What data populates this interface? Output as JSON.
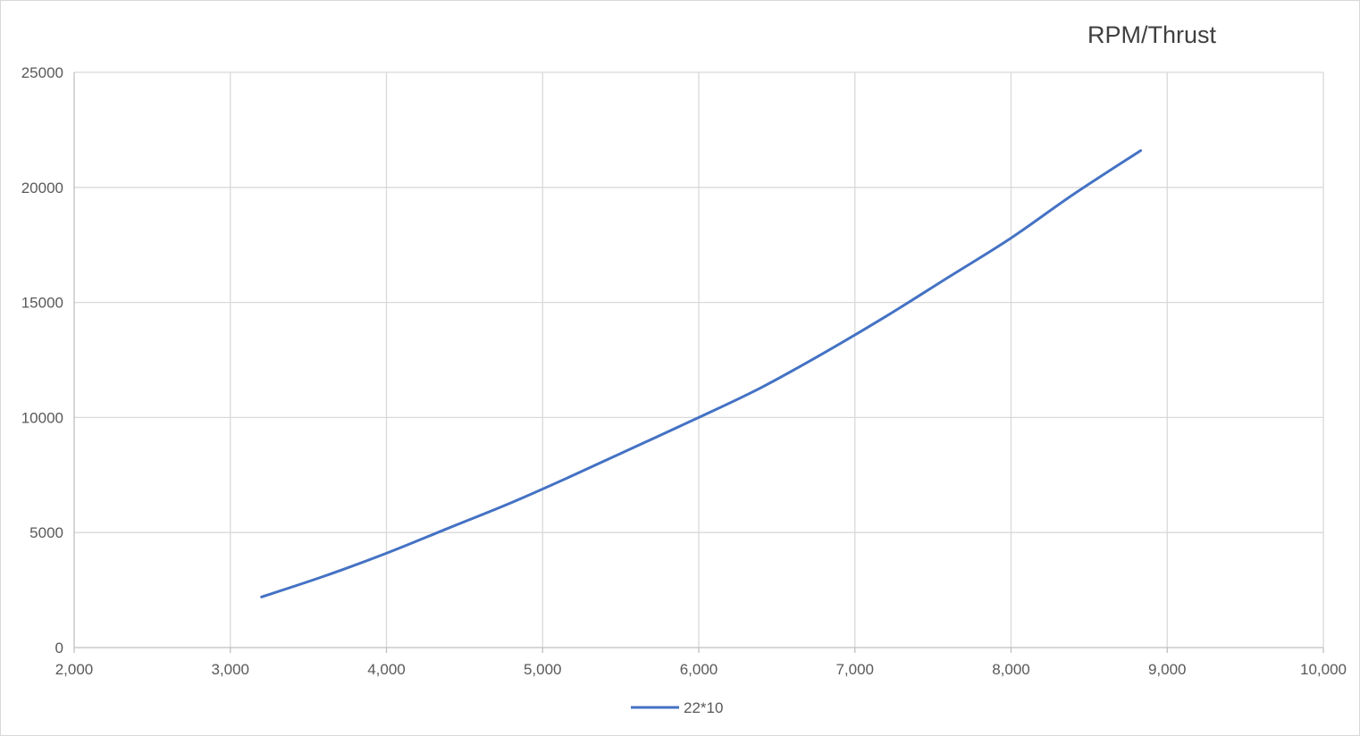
{
  "chart_data": {
    "type": "scatter",
    "title": "RPM/Thrust",
    "xlabel": "",
    "ylabel": "",
    "xlim": [
      2000,
      10000
    ],
    "ylim": [
      0,
      25000
    ],
    "x_ticks": [
      2000,
      3000,
      4000,
      5000,
      6000,
      7000,
      8000,
      9000,
      10000
    ],
    "x_tick_labels": [
      "2,000",
      "3,000",
      "4,000",
      "5,000",
      "6,000",
      "7,000",
      "8,000",
      "9,000",
      "10,000"
    ],
    "y_ticks": [
      0,
      5000,
      10000,
      15000,
      20000,
      25000
    ],
    "y_tick_labels": [
      "0",
      "5000",
      "10000",
      "15000",
      "20000",
      "25000"
    ],
    "grid": true,
    "legend": "bottom",
    "series": [
      {
        "name": "22*10",
        "color": "#4472c4",
        "smooth": true,
        "x": [
          3200,
          3600,
          4000,
          4400,
          4800,
          5200,
          5600,
          6000,
          6400,
          6800,
          7200,
          7600,
          8000,
          8400,
          8830
        ],
        "y": [
          2200,
          3100,
          4100,
          5200,
          6300,
          7500,
          8750,
          10000,
          11300,
          12800,
          14400,
          16100,
          17800,
          19700,
          21600
        ]
      }
    ]
  }
}
